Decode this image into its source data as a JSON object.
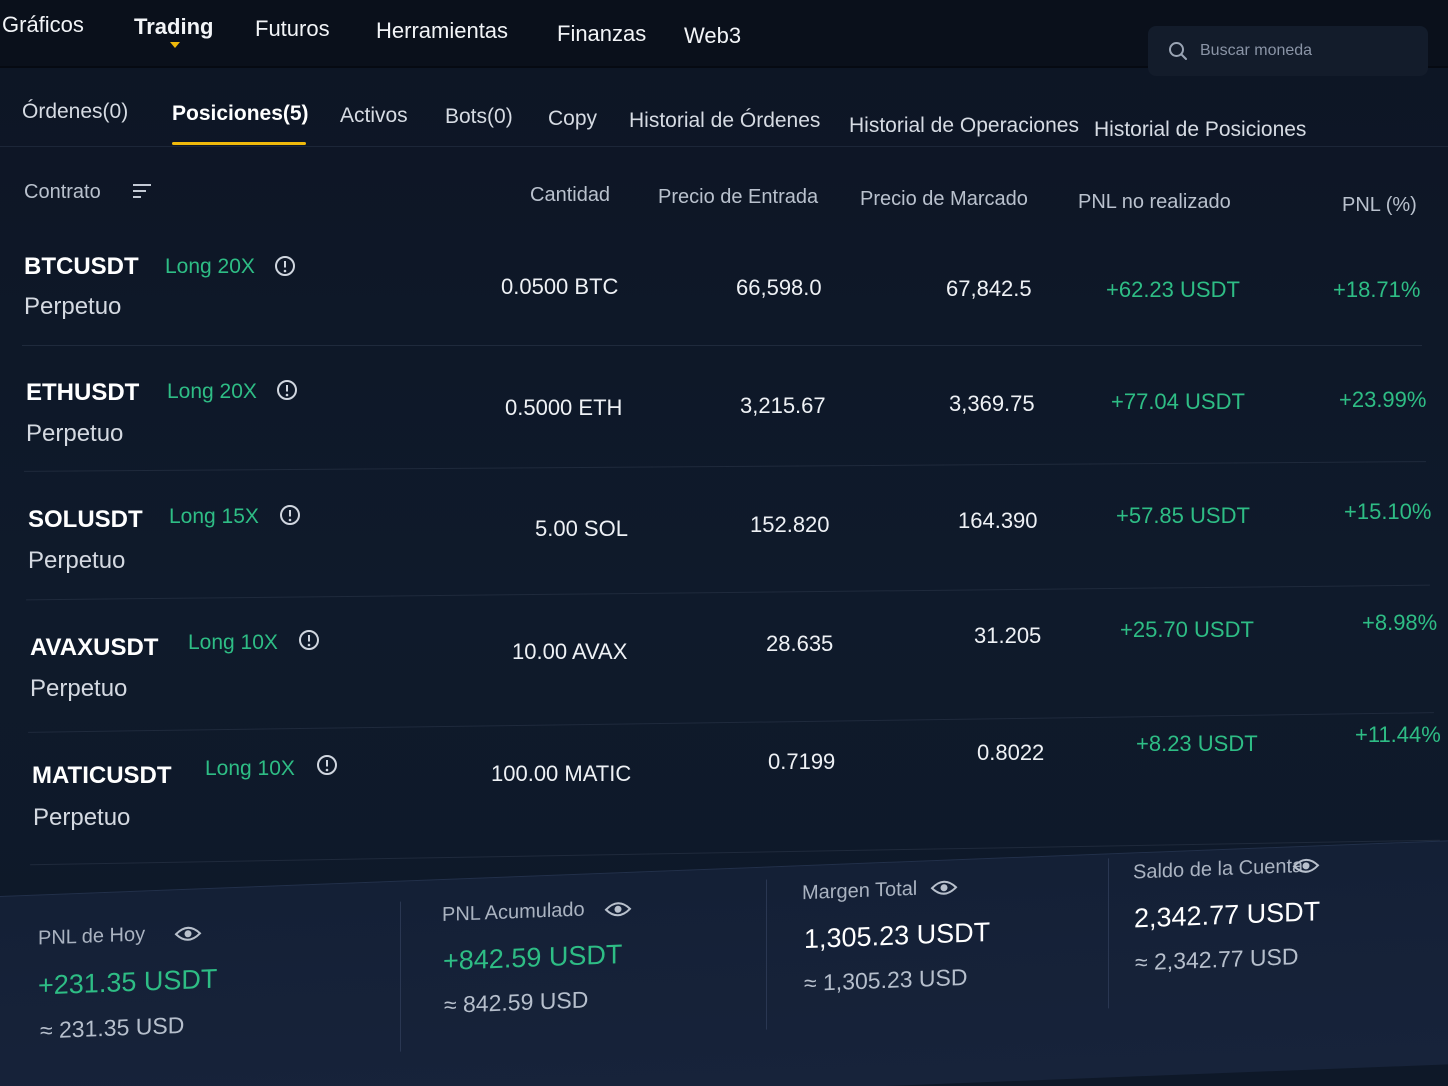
{
  "topnav": {
    "items": [
      {
        "label": "Gráficos"
      },
      {
        "label": "Trading"
      },
      {
        "label": "Futuros"
      },
      {
        "label": "Herramientas"
      },
      {
        "label": "Finanzas"
      },
      {
        "label": "Web3"
      }
    ],
    "active_index": 1,
    "search_placeholder": "Buscar moneda"
  },
  "tabs": [
    {
      "label": "Órdenes(0)"
    },
    {
      "label": "Posiciones(5)"
    },
    {
      "label": "Activos"
    },
    {
      "label": "Bots(0)"
    },
    {
      "label": "Copy"
    },
    {
      "label": "Historial de Órdenes"
    },
    {
      "label": "Historial de Operaciones"
    },
    {
      "label": "Historial de Posiciones"
    }
  ],
  "active_tab_index": 1,
  "table": {
    "headers": {
      "contract": "Contrato",
      "quantity": "Cantidad",
      "entry_price": "Precio de Entrada",
      "mark_price": "Precio de Marcado",
      "unrealized_pnl": "PNL no realizado",
      "pnl_pct": "PNL (%)"
    },
    "rows": [
      {
        "symbol": "BTCUSDT",
        "leverage": "Long 20X",
        "type": "Perpetuo",
        "quantity": "0.0500 BTC",
        "entry": "66,598.0",
        "mark": "67,842.5",
        "pnl": "+62.23 USDT",
        "pnl_pct": "+18.71%"
      },
      {
        "symbol": "ETHUSDT",
        "leverage": "Long 20X",
        "type": "Perpetuo",
        "quantity": "0.5000 ETH",
        "entry": "3,215.67",
        "mark": "3,369.75",
        "pnl": "+77.04 USDT",
        "pnl_pct": "+23.99%"
      },
      {
        "symbol": "SOLUSDT",
        "leverage": "Long 15X",
        "type": "Perpetuo",
        "quantity": "5.00 SOL",
        "entry": "152.820",
        "mark": "164.390",
        "pnl": "+57.85 USDT",
        "pnl_pct": "+15.10%"
      },
      {
        "symbol": "AVAXUSDT",
        "leverage": "Long 10X",
        "type": "Perpetuo",
        "quantity": "10.00 AVAX",
        "entry": "28.635",
        "mark": "31.205",
        "pnl": "+25.70 USDT",
        "pnl_pct": "+8.98%"
      },
      {
        "symbol": "MATICUSDT",
        "leverage": "Long 10X",
        "type": "Perpetuo",
        "quantity": "100.00 MATIC",
        "entry": "0.7199",
        "mark": "0.8022",
        "pnl": "+8.23 USDT",
        "pnl_pct": "+11.44%"
      }
    ]
  },
  "summary": [
    {
      "label": "PNL de Hoy",
      "value": "+231.35 USDT",
      "approx": "≈ 231.35 USD",
      "positive": true
    },
    {
      "label": "PNL Acumulado",
      "value": "+842.59 USDT",
      "approx": "≈ 842.59 USD",
      "positive": true
    },
    {
      "label": "Margen Total",
      "value": "1,305.23 USDT",
      "approx": "≈ 1,305.23 USD",
      "positive": false
    },
    {
      "label": "Saldo de la Cuenta",
      "value": "2,342.77 USDT",
      "approx": "≈ 2,342.77 USD",
      "positive": false
    }
  ],
  "colors": {
    "accent": "#f0b90b",
    "positive": "#2ebd85",
    "background": "#0d1524"
  },
  "icons": {
    "search": "search-icon",
    "sort": "sort-icon",
    "info": "info-icon",
    "visibility": "eye-icon"
  }
}
